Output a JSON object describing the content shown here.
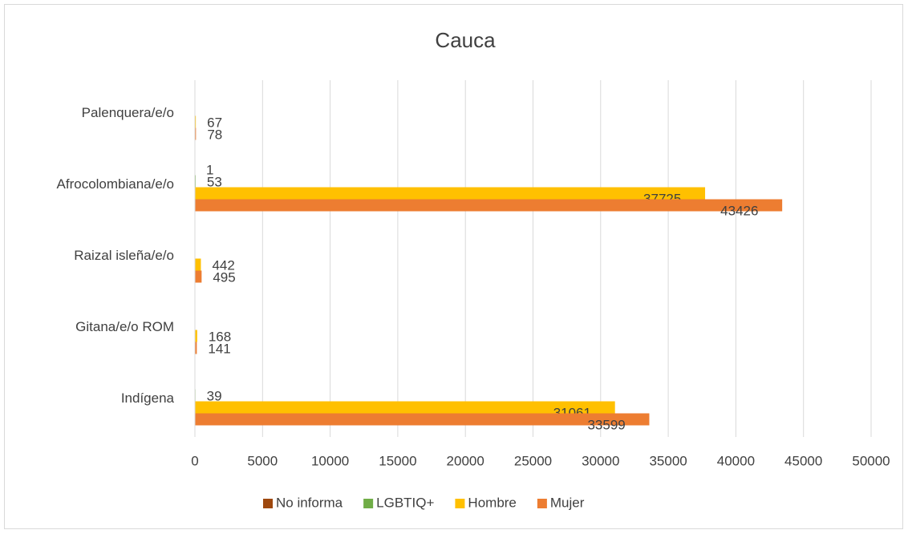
{
  "chart_data": {
    "type": "hbar",
    "title": "Cauca",
    "categories": [
      "Indígena",
      "Gitana/e/o ROM",
      "Raizal isleña/e/o",
      "Afrocolombiana/e/o",
      "Palenquera/e/o"
    ],
    "series": [
      {
        "name": "No informa",
        "color": "#9e480e",
        "values": [
          null,
          null,
          null,
          1,
          null
        ]
      },
      {
        "name": "LGBTIQ+",
        "color": "#70ad47",
        "values": [
          39,
          null,
          null,
          53,
          null
        ]
      },
      {
        "name": "Hombre",
        "color": "#ffc000",
        "values": [
          31061,
          168,
          442,
          37725,
          67
        ]
      },
      {
        "name": "Mujer",
        "color": "#ed7d31",
        "values": [
          33599,
          141,
          495,
          43426,
          78
        ]
      }
    ],
    "xlim": [
      0,
      50000
    ],
    "xticks": [
      0,
      5000,
      10000,
      15000,
      20000,
      25000,
      30000,
      35000,
      40000,
      45000,
      50000
    ],
    "grid": true,
    "legend": "bottom"
  }
}
